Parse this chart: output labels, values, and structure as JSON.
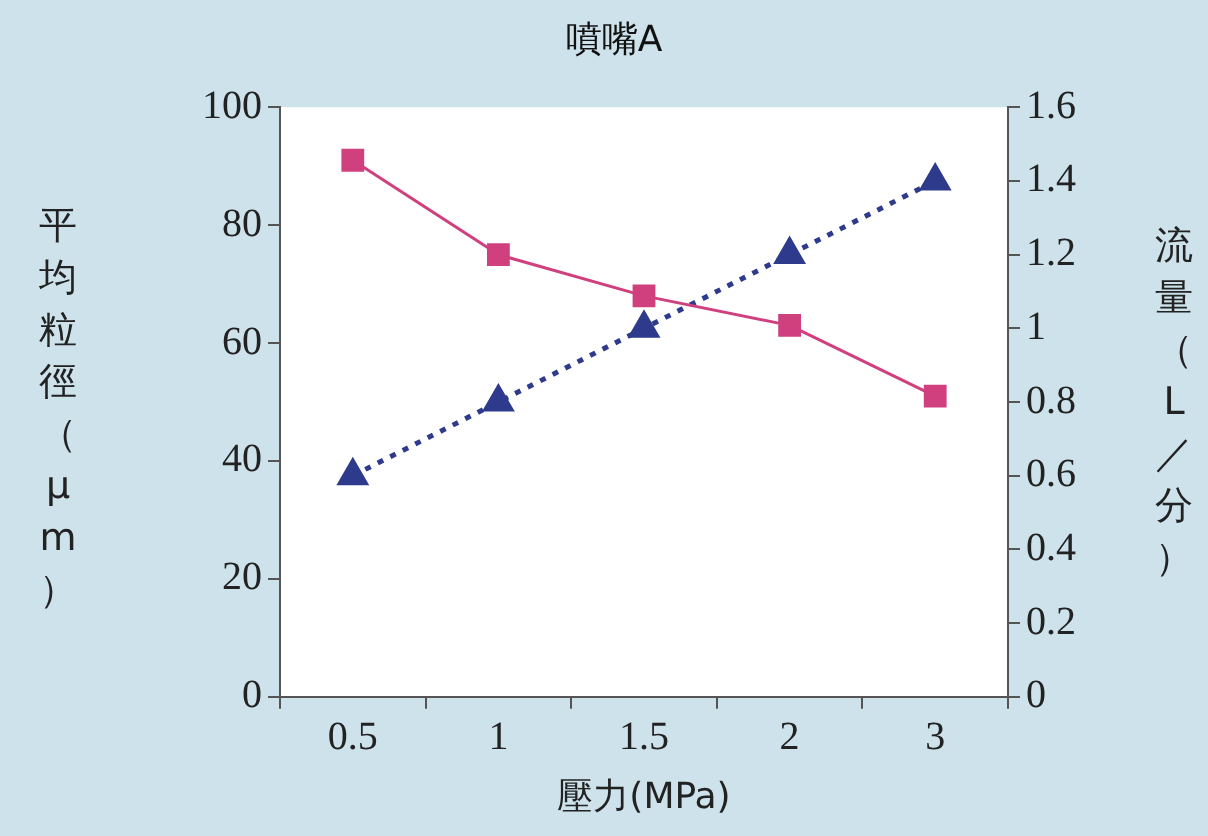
{
  "chart_data": {
    "type": "line",
    "title": "噴嘴A",
    "xlabel": "壓力(MPa)",
    "ylabel": "平均粒徑（μm）",
    "y2label": "流量（L／分）",
    "categories": [
      "0.5",
      "1",
      "1.5",
      "2",
      "3"
    ],
    "series": [
      {
        "color": "#d0407f",
        "values": [
          91,
          75,
          68,
          63,
          51
        ],
        "marker": "square",
        "line_style": "solid"
      },
      {
        "color": "#2e3a8c",
        "values": [
          0.6,
          0.8,
          1.0,
          1.2,
          1.4
        ],
        "axis": "y2",
        "marker": "triangle",
        "line_style": "dotted"
      }
    ],
    "ylim": [
      0,
      100
    ],
    "yticks": [
      0,
      20,
      40,
      60,
      80,
      100
    ],
    "y2lim": [
      0,
      1.6
    ],
    "y2ticks": [
      0,
      0.2,
      0.4,
      0.6,
      0.8,
      1,
      1.2,
      1.4,
      1.6
    ],
    "grid": false,
    "legend": false
  }
}
